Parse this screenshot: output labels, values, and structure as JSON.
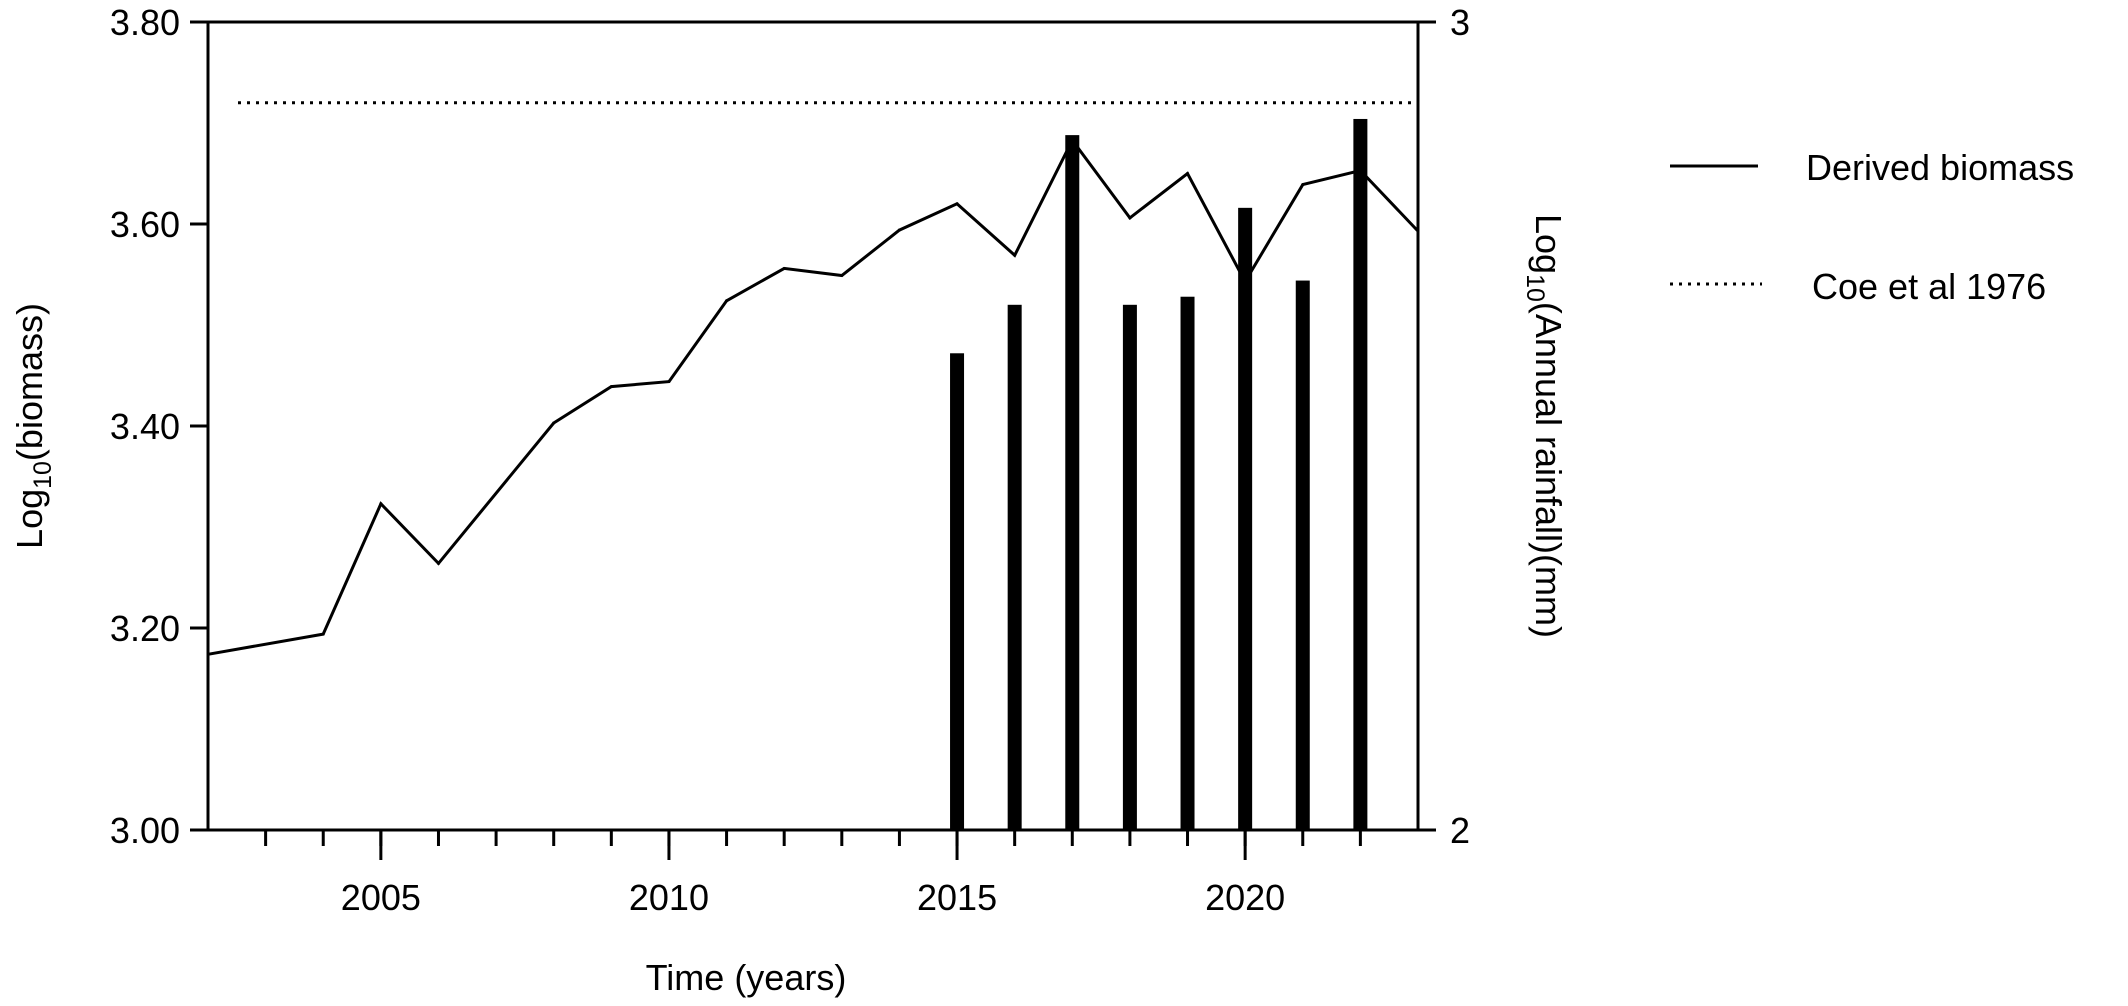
{
  "chart_data": {
    "type": "bar+line",
    "xlabel": "Time (years)",
    "ylabel_left": {
      "base": "Log",
      "sub": "10",
      "rest": "(biomass)"
    },
    "ylabel_right": {
      "base": "Log",
      "sub": "10",
      "rest": "(Annual rainfall)(mm)"
    },
    "xlim": [
      2002,
      2023
    ],
    "x_ticks": [
      2005,
      2010,
      2015,
      2020
    ],
    "x_minor_ticks": [
      2003,
      2004,
      2005,
      2006,
      2007,
      2008,
      2009,
      2010,
      2011,
      2012,
      2013,
      2014,
      2015,
      2016,
      2017,
      2018,
      2019,
      2020,
      2021,
      2022
    ],
    "ylim_left": [
      3.0,
      3.8
    ],
    "yticks_left": [
      {
        "value": 3.0,
        "label": "3.00"
      },
      {
        "value": 3.2,
        "label": "3.20"
      },
      {
        "value": 3.4,
        "label": "3.40"
      },
      {
        "value": 3.6,
        "label": "3.60"
      },
      {
        "value": 3.8,
        "label": "3.80"
      }
    ],
    "ylim_right": [
      2,
      3
    ],
    "yticks_right": [
      {
        "value": 2,
        "label": "2"
      },
      {
        "value": 3,
        "label": "3"
      }
    ],
    "grid": false,
    "legend_position": "right",
    "series": [
      {
        "name": "Derived biomass",
        "type": "line",
        "axis": "left",
        "style": "solid",
        "x": [
          2002,
          2004,
          2005,
          2006,
          2008,
          2009,
          2010,
          2011,
          2012,
          2013,
          2014,
          2015,
          2016,
          2017,
          2018,
          2019,
          2020,
          2021,
          2022,
          2023
        ],
        "y": [
          3.174,
          3.194,
          3.323,
          3.264,
          3.403,
          3.439,
          3.444,
          3.524,
          3.556,
          3.549,
          3.594,
          3.62,
          3.569,
          3.683,
          3.606,
          3.65,
          3.543,
          3.639,
          3.653,
          3.593
        ]
      },
      {
        "name": "Coe et al 1976",
        "type": "hline",
        "axis": "left",
        "style": "dotted",
        "y": 3.72
      },
      {
        "type": "bar",
        "axis": "right",
        "x": [
          2015,
          2016,
          2017,
          2018,
          2019,
          2020,
          2021,
          2022
        ],
        "y": [
          2.59,
          2.65,
          2.86,
          2.65,
          2.66,
          2.77,
          2.68,
          2.88
        ]
      }
    ],
    "colors": {
      "line": "#000000",
      "bar": "#000000",
      "background": "#ffffff"
    }
  }
}
